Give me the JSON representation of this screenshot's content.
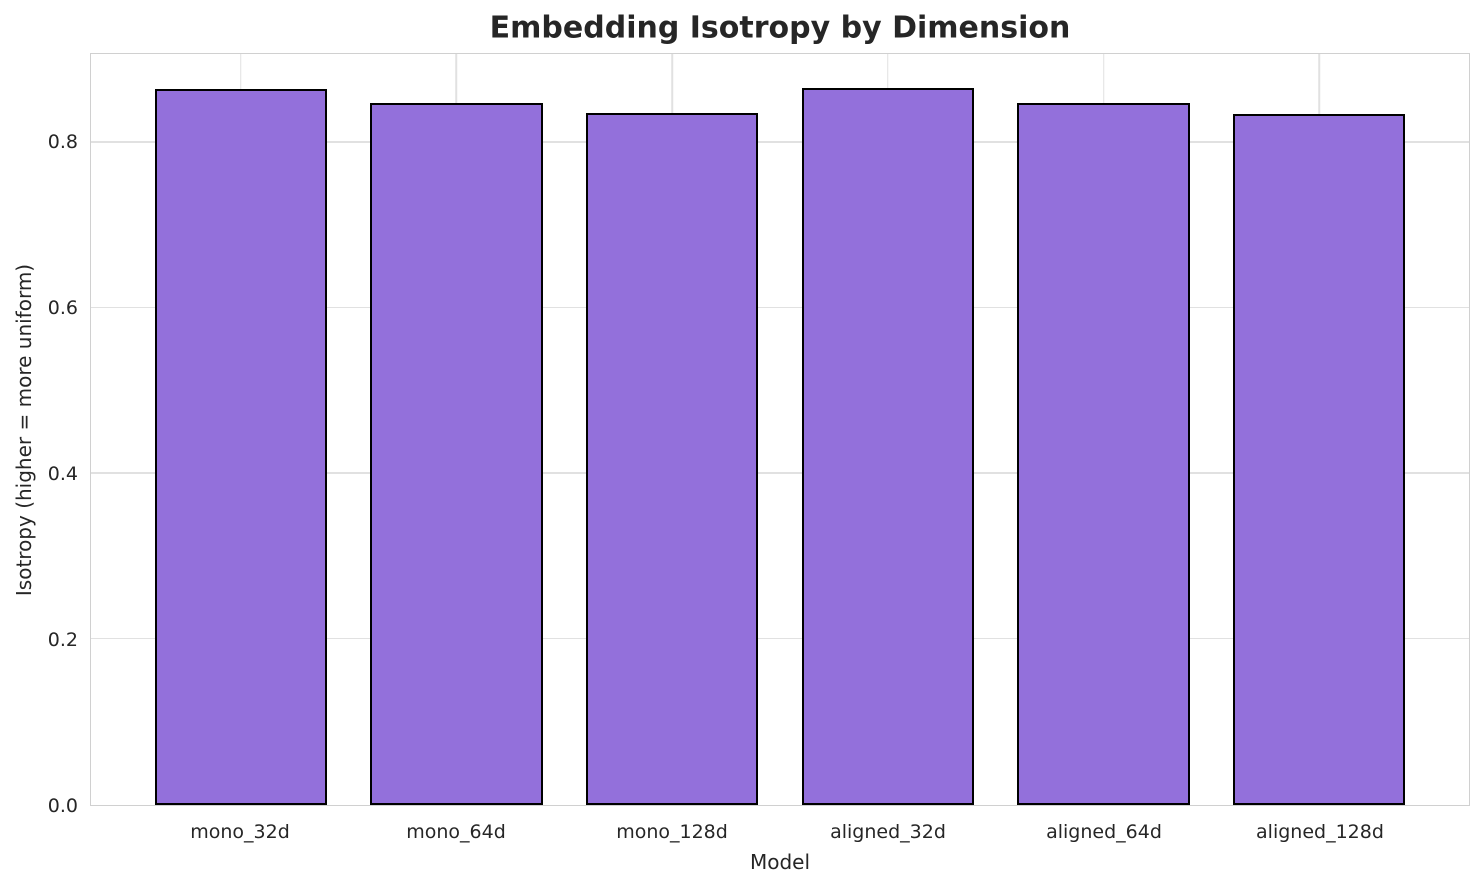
{
  "chart_data": {
    "type": "bar",
    "title": "Embedding Isotropy by Dimension",
    "xlabel": "Model",
    "ylabel": "Isotropy (higher = more uniform)",
    "categories": [
      "mono_32d",
      "mono_64d",
      "mono_128d",
      "aligned_32d",
      "aligned_64d",
      "aligned_128d"
    ],
    "values": [
      0.865,
      0.848,
      0.836,
      0.866,
      0.848,
      0.835
    ],
    "ylim": [
      0,
      0.907
    ],
    "yticks": [
      0.0,
      0.2,
      0.4,
      0.6,
      0.8
    ],
    "grid": true,
    "legend": "none",
    "bar_color": "#9370DB",
    "bar_edge_color": "#000000",
    "grid_color": "#e1e1e1",
    "spine_color": "#d0d0d0",
    "text_color": "#262626"
  }
}
